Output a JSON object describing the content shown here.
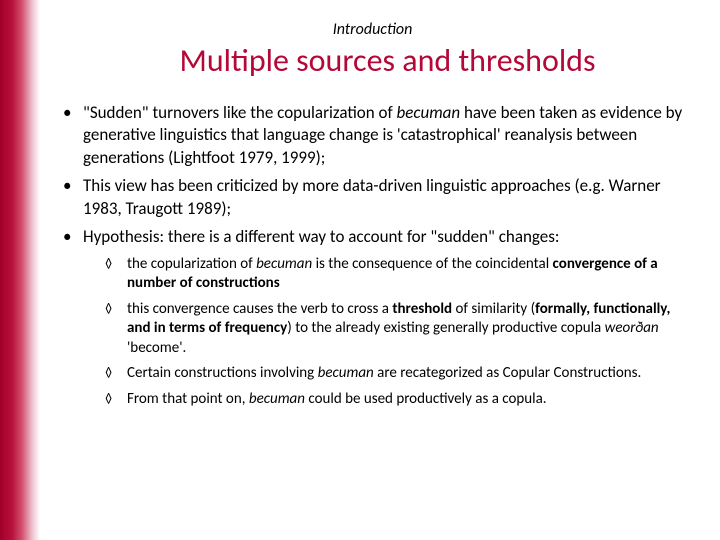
{
  "colors": {
    "accent": "#b30838",
    "stripe_gradient": [
      "#a1002a",
      "#b8103a",
      "#d45070",
      "#ecc0cc",
      "#ffffff"
    ],
    "text": "#000000",
    "background": "#ffffff"
  },
  "typography": {
    "family": "Calibri",
    "section_label_size_pt": 12,
    "title_size_pt": 24,
    "body_size_pt": 13,
    "sub_size_pt": 11
  },
  "section_label": "Introduction",
  "title": "Multiple sources and thresholds",
  "bullets": [
    {
      "runs": [
        {
          "t": "\"Sudden\" turnovers like the copularization of "
        },
        {
          "t": "becuman",
          "style": "italic"
        },
        {
          "t": " have been taken as evidence by generative linguistics that language change is 'catastrophical' reanalysis between generations (Lightfoot 1979, 1999);"
        }
      ]
    },
    {
      "runs": [
        {
          "t": "This view has been criticized by more data-driven linguistic approaches (e.g. Warner 1983, Traugott 1989);"
        }
      ]
    },
    {
      "runs": [
        {
          "t": "Hypothesis: there is a different way to account for \"sudden\" changes:"
        }
      ],
      "sub": [
        {
          "runs": [
            {
              "t": "the copularization of "
            },
            {
              "t": "becuman",
              "style": "italic"
            },
            {
              "t": " is the consequence of the coincidental "
            },
            {
              "t": "convergence of a number of constructions",
              "style": "bold"
            }
          ]
        },
        {
          "runs": [
            {
              "t": "this convergence causes the verb to cross a "
            },
            {
              "t": "threshold",
              "style": "bold"
            },
            {
              "t": " of similarity ("
            },
            {
              "t": "formally, functionally, and in terms of frequency",
              "style": "bold"
            },
            {
              "t": ") to the already existing generally productive copula "
            },
            {
              "t": "weorðan",
              "style": "italic"
            },
            {
              "t": " 'become'."
            }
          ]
        },
        {
          "runs": [
            {
              "t": "Certain constructions involving "
            },
            {
              "t": "becuman",
              "style": "italic"
            },
            {
              "t": " are recategorized as Copular Constructions."
            }
          ]
        },
        {
          "runs": [
            {
              "t": "From that point on, "
            },
            {
              "t": "becuman",
              "style": "italic"
            },
            {
              "t": " could be used productively as a copula."
            }
          ]
        }
      ]
    }
  ]
}
